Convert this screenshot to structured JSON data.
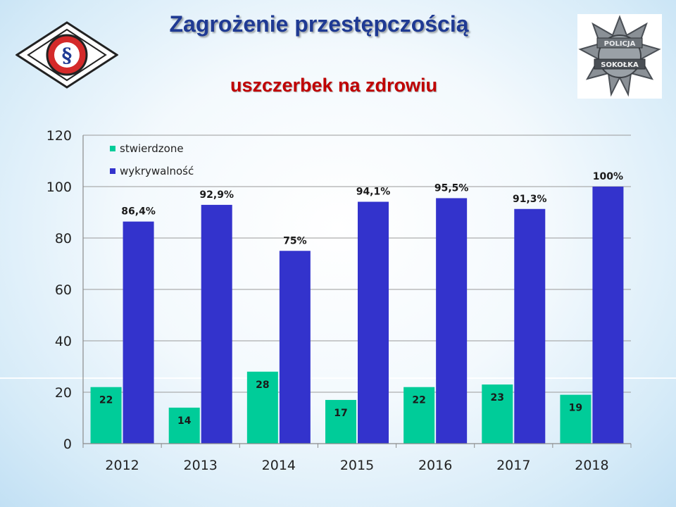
{
  "slide": {
    "title": "Zagrożenie przestępczością",
    "subtitle": "uszczerbek na zdrowiu"
  },
  "logos": {
    "left": {
      "icon": "paragraph-diamond-logo",
      "symbol": "§"
    },
    "right": {
      "icon": "police-star-badge",
      "text_top": "POLICJA",
      "text_bottom": "SOKOŁKA"
    }
  },
  "colors": {
    "title": "#1f3a93",
    "subtitle": "#c00000",
    "stwierdzone": "#00cc99",
    "wykrywalnosc": "#3333cc"
  },
  "chart_data": {
    "type": "bar",
    "categories": [
      "2012",
      "2013",
      "2014",
      "2015",
      "2016",
      "2017",
      "2018"
    ],
    "series": [
      {
        "name": "stwierdzone",
        "values": [
          22,
          14,
          28,
          17,
          22,
          23,
          19
        ],
        "labels": [
          "22",
          "14",
          "28",
          "17",
          "22",
          "23",
          "19"
        ]
      },
      {
        "name": "wykrywalność",
        "values": [
          86.4,
          92.9,
          75,
          94.1,
          95.5,
          91.3,
          100
        ],
        "labels": [
          "86,4%",
          "92,9%",
          "75%",
          "94,1%",
          "95,5%",
          "91,3%",
          "100%"
        ]
      }
    ],
    "yticks": [
      "0",
      "20",
      "40",
      "60",
      "80",
      "100",
      "120"
    ],
    "ylim": [
      0,
      120
    ],
    "grid": true,
    "legend": "top-left"
  }
}
